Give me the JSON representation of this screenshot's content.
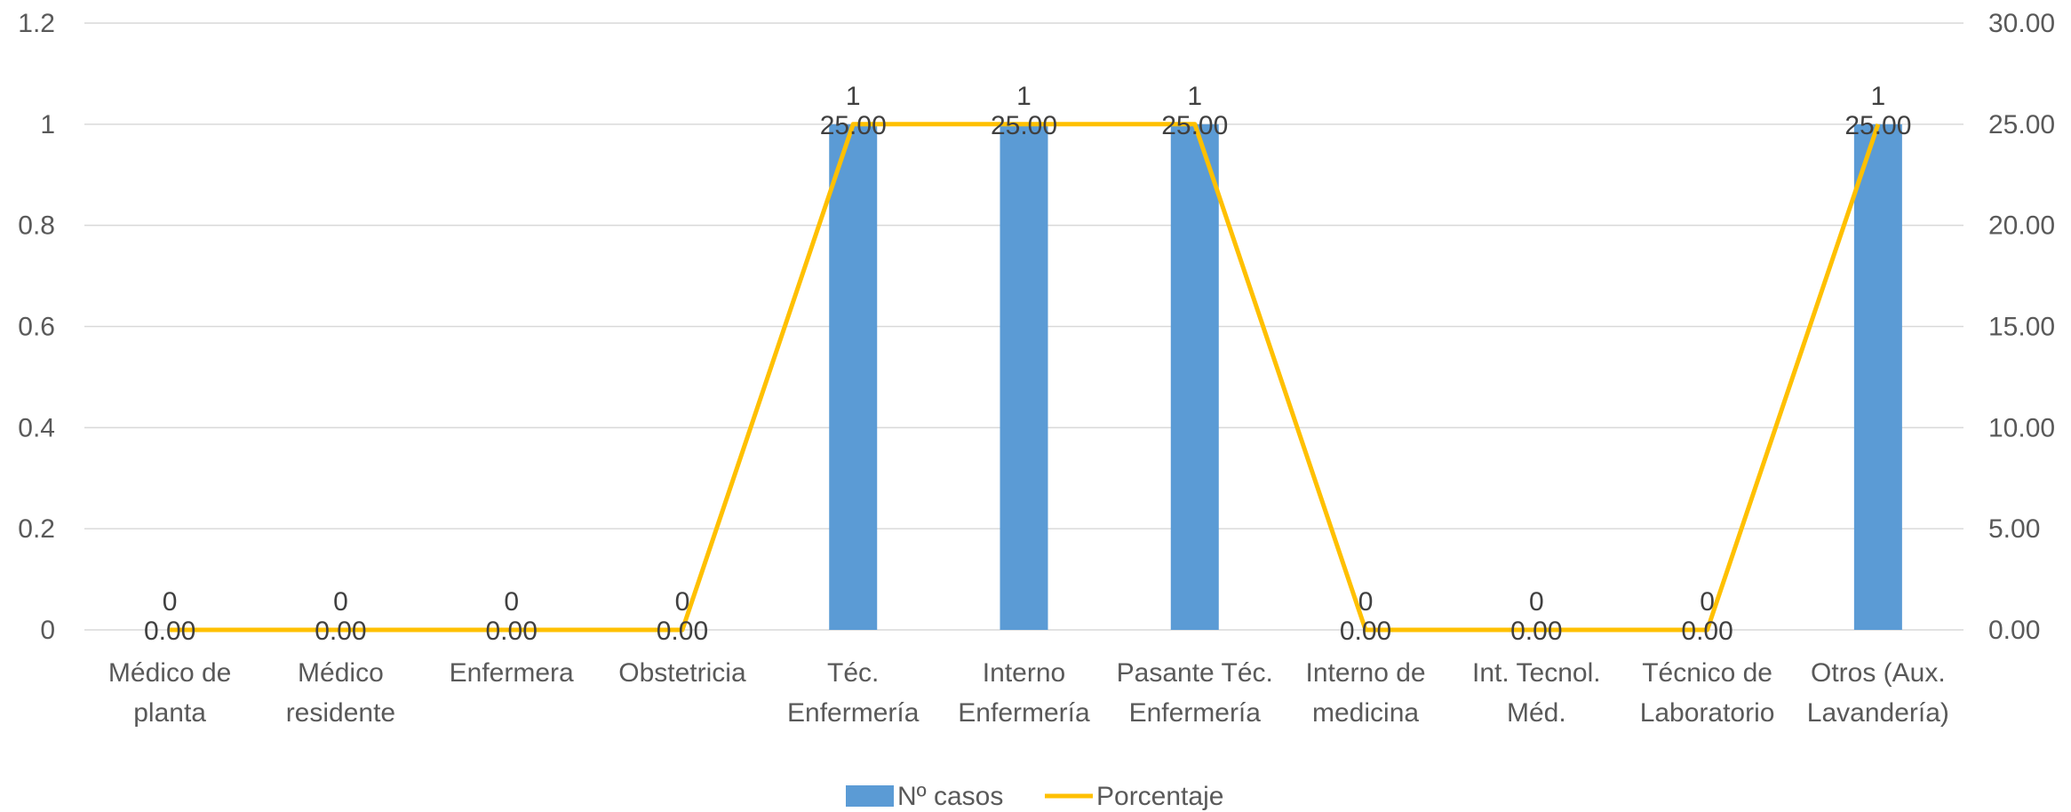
{
  "chart_data": {
    "type": "bar+line",
    "categories": [
      [
        "Médico de",
        "planta"
      ],
      [
        "Médico",
        "residente"
      ],
      [
        "Enfermera"
      ],
      [
        "Obstetricia"
      ],
      [
        "Téc.",
        "Enfermería"
      ],
      [
        "Interno",
        "Enfermería"
      ],
      [
        "Pasante Téc.",
        "Enfermería"
      ],
      [
        "Interno de",
        "medicina"
      ],
      [
        "Int. Tecnol.",
        "Méd."
      ],
      [
        "Técnico de",
        "Laboratorio"
      ],
      [
        "Otros (Aux.",
        "Lavandería)"
      ]
    ],
    "series": [
      {
        "name": "Nº casos",
        "type": "bar",
        "axis": "left",
        "color": "#5B9BD5",
        "values": [
          0,
          0,
          0,
          0,
          1,
          1,
          1,
          0,
          0,
          0,
          1
        ],
        "labels": [
          "0",
          "0",
          "0",
          "0",
          "1",
          "1",
          "1",
          "0",
          "0",
          "0",
          "1"
        ]
      },
      {
        "name": "Porcentaje",
        "type": "line",
        "axis": "right",
        "color": "#FFC000",
        "values": [
          0,
          0,
          0,
          0,
          25,
          25,
          25,
          0,
          0,
          0,
          25
        ],
        "labels": [
          "0.00",
          "0.00",
          "0.00",
          "0.00",
          "25.00",
          "25.00",
          "25.00",
          "0.00",
          "0.00",
          "0.00",
          "25.00"
        ]
      }
    ],
    "y_left": {
      "min": 0,
      "max": 1.2,
      "ticks": [
        "0",
        "0.2",
        "0.4",
        "0.6",
        "0.8",
        "1",
        "1.2"
      ]
    },
    "y_right": {
      "min": 0,
      "max": 30,
      "ticks": [
        "0.00",
        "5.00",
        "10.00",
        "15.00",
        "20.00",
        "25.00",
        "30.00"
      ]
    },
    "grid": true,
    "legend_position": "bottom-center",
    "grid_color": "#D9D9D9"
  }
}
